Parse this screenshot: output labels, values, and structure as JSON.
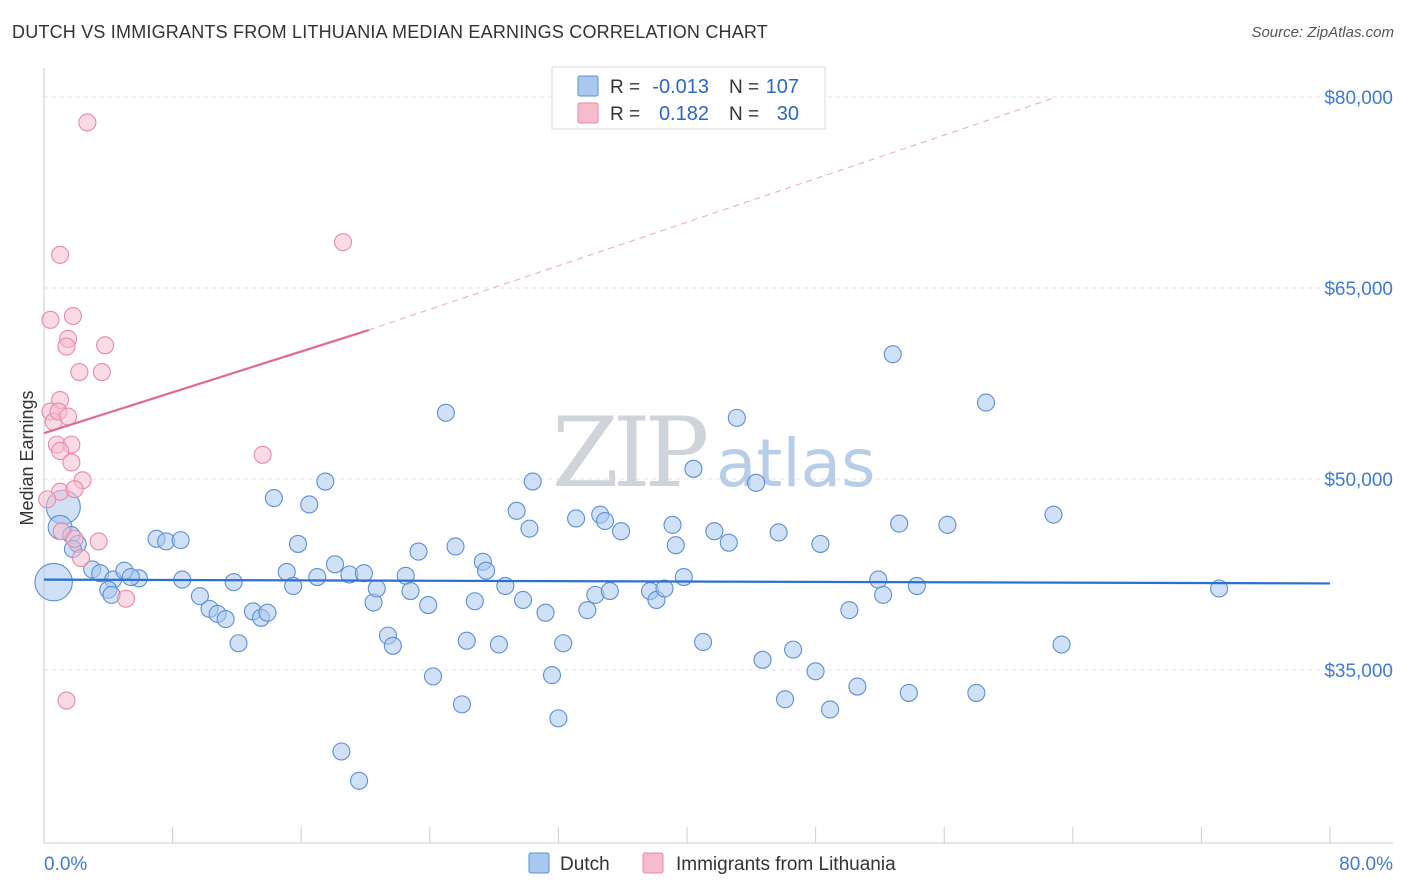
{
  "title": "DUTCH VS IMMIGRANTS FROM LITHUANIA MEDIAN EARNINGS CORRELATION CHART",
  "source": "Source: ZipAtlas.com",
  "watermark": {
    "zip": "ZIP",
    "atlas": "atlas"
  },
  "colors": {
    "dutch_fill": "#a9c8ef",
    "dutch_stroke": "#5b8fd6",
    "dutch_line": "#2b6fd0",
    "lith_fill": "#f6bccd",
    "lith_stroke": "#e98aa6",
    "lith_line": "#e06a93",
    "grid": "#dde2ea",
    "axis_text": "#3d7bd4"
  },
  "legend": {
    "rows": [
      {
        "r_label": "R =",
        "r_value": "-0.013",
        "n_label": "N =",
        "n_value": "107",
        "series": "dutch"
      },
      {
        "r_label": "R =",
        "r_value": "0.182",
        "n_label": "N =",
        "n_value": "30",
        "series": "lith"
      }
    ]
  },
  "bottom_legend": [
    "Dutch",
    "Immigrants from Lithuania"
  ],
  "chart_data": {
    "type": "scatter",
    "title": "DUTCH VS IMMIGRANTS FROM LITHUANIA MEDIAN EARNINGS CORRELATION CHART",
    "xlabel": "",
    "ylabel": "Median Earnings",
    "x_unit": "percent",
    "xlim": [
      0,
      80
    ],
    "ylim": [
      22000,
      83000
    ],
    "x_tick_labels": [
      "0.0%",
      "80.0%"
    ],
    "y_ticks": [
      35000,
      50000,
      65000,
      80000
    ],
    "y_tick_labels": [
      "$35,000",
      "$50,000",
      "$65,000",
      "$80,000"
    ],
    "grid": true,
    "legend_position": "top-center",
    "series": [
      {
        "name": "Dutch",
        "color": "#a9c8ef",
        "r": -0.013,
        "n": 107,
        "trend": {
          "x": [
            0,
            80
          ],
          "y": [
            42100,
            41800
          ],
          "style": "solid"
        },
        "points": [
          [
            0.6,
            41900,
            2.2
          ],
          [
            1.2,
            47800,
            2.0
          ],
          [
            1.0,
            46200,
            1.4
          ],
          [
            1.7,
            45600,
            1.0
          ],
          [
            2.1,
            44900,
            1.0
          ],
          [
            1.8,
            44500,
            1.0
          ],
          [
            3.0,
            42900,
            1.0
          ],
          [
            3.5,
            42600,
            1.0
          ],
          [
            4.3,
            42100,
            1.0
          ],
          [
            5.0,
            42800,
            1.0
          ],
          [
            5.9,
            42200,
            1.0
          ],
          [
            4.0,
            41300,
            1.0
          ],
          [
            4.2,
            40900,
            1.0
          ],
          [
            5.4,
            42300,
            1.0
          ],
          [
            7.0,
            45300,
            1.0
          ],
          [
            7.6,
            45100,
            1.0
          ],
          [
            8.5,
            45200,
            1.0
          ],
          [
            8.6,
            42100,
            1.0
          ],
          [
            9.7,
            40800,
            1.0
          ],
          [
            10.3,
            39800,
            1.0
          ],
          [
            10.8,
            39400,
            1.0
          ],
          [
            11.3,
            39000,
            1.0
          ],
          [
            11.8,
            41900,
            1.0
          ],
          [
            12.1,
            37100,
            1.0
          ],
          [
            13.0,
            39600,
            1.0
          ],
          [
            13.5,
            39100,
            1.0
          ],
          [
            13.9,
            39500,
            1.0
          ],
          [
            14.3,
            48500,
            1.0
          ],
          [
            15.1,
            42700,
            1.0
          ],
          [
            15.5,
            41600,
            1.0
          ],
          [
            15.8,
            44900,
            1.0
          ],
          [
            16.5,
            48000,
            1.0
          ],
          [
            17.0,
            42300,
            1.0
          ],
          [
            17.5,
            49800,
            1.0
          ],
          [
            18.1,
            43300,
            1.0
          ],
          [
            18.5,
            28600,
            1.0
          ],
          [
            19.0,
            42500,
            1.0
          ],
          [
            19.6,
            26300,
            1.0
          ],
          [
            19.9,
            42600,
            1.0
          ],
          [
            20.5,
            40300,
            1.0
          ],
          [
            20.7,
            41400,
            1.0
          ],
          [
            21.4,
            37700,
            1.0
          ],
          [
            21.7,
            36900,
            1.0
          ],
          [
            22.5,
            42400,
            1.0
          ],
          [
            22.8,
            41200,
            1.0
          ],
          [
            23.3,
            44300,
            1.0
          ],
          [
            23.9,
            40100,
            1.0
          ],
          [
            24.2,
            34500,
            1.0
          ],
          [
            25.0,
            55200,
            1.0
          ],
          [
            25.6,
            44700,
            1.0
          ],
          [
            26.0,
            32300,
            1.0
          ],
          [
            26.3,
            37300,
            1.0
          ],
          [
            26.8,
            40400,
            1.0
          ],
          [
            27.3,
            43500,
            1.0
          ],
          [
            27.5,
            42800,
            1.0
          ],
          [
            28.3,
            37000,
            1.0
          ],
          [
            28.7,
            41600,
            1.0
          ],
          [
            29.4,
            47500,
            1.0
          ],
          [
            29.8,
            40500,
            1.0
          ],
          [
            30.2,
            46100,
            1.0
          ],
          [
            30.4,
            49800,
            1.0
          ],
          [
            31.2,
            39500,
            1.0
          ],
          [
            31.6,
            34600,
            1.0
          ],
          [
            32.0,
            31200,
            1.0
          ],
          [
            32.3,
            37100,
            1.0
          ],
          [
            33.1,
            46900,
            1.0
          ],
          [
            33.8,
            39700,
            1.0
          ],
          [
            34.3,
            40900,
            1.0
          ],
          [
            34.6,
            47200,
            1.0
          ],
          [
            34.9,
            46700,
            1.0
          ],
          [
            35.2,
            41200,
            1.0
          ],
          [
            35.9,
            45900,
            1.0
          ],
          [
            37.7,
            41200,
            1.0
          ],
          [
            38.1,
            40500,
            1.0
          ],
          [
            38.6,
            41400,
            1.0
          ],
          [
            39.1,
            46400,
            1.0
          ],
          [
            39.3,
            44800,
            1.0
          ],
          [
            39.8,
            42300,
            1.0
          ],
          [
            40.4,
            50800,
            1.0
          ],
          [
            41.0,
            37200,
            1.0
          ],
          [
            41.7,
            45900,
            1.0
          ],
          [
            42.6,
            45000,
            1.0
          ],
          [
            43.1,
            54800,
            1.0
          ],
          [
            44.3,
            49700,
            1.0
          ],
          [
            44.7,
            35800,
            1.0
          ],
          [
            45.7,
            45800,
            1.0
          ],
          [
            46.1,
            32700,
            1.0
          ],
          [
            46.6,
            36600,
            1.0
          ],
          [
            48.0,
            34900,
            1.0
          ],
          [
            48.3,
            44900,
            1.0
          ],
          [
            48.9,
            31900,
            1.0
          ],
          [
            50.1,
            39700,
            1.0
          ],
          [
            50.6,
            33700,
            1.0
          ],
          [
            51.9,
            42100,
            1.0
          ],
          [
            52.2,
            40900,
            1.0
          ],
          [
            52.8,
            59800,
            1.0
          ],
          [
            53.2,
            46500,
            1.0
          ],
          [
            53.8,
            33200,
            1.0
          ],
          [
            54.3,
            41600,
            1.0
          ],
          [
            56.2,
            46400,
            1.0
          ],
          [
            58.0,
            33200,
            1.0
          ],
          [
            58.6,
            56000,
            1.0
          ],
          [
            62.8,
            47200,
            1.0
          ],
          [
            63.3,
            37000,
            1.0
          ],
          [
            73.1,
            41400,
            1.0
          ]
        ]
      },
      {
        "name": "Immigrants from Lithuania",
        "color": "#f6bccd",
        "r": 0.182,
        "n": 30,
        "trend": {
          "x": [
            0,
            20.2
          ],
          "y": [
            53600,
            61700
          ],
          "style": "solid",
          "dashed_to": [
            63.0,
            80000
          ]
        },
        "points": [
          [
            2.7,
            78000,
            1.0
          ],
          [
            1.0,
            67600,
            1.0
          ],
          [
            18.6,
            68600,
            1.0
          ],
          [
            0.4,
            62500,
            1.0
          ],
          [
            1.8,
            62800,
            1.0
          ],
          [
            1.5,
            61000,
            1.0
          ],
          [
            1.4,
            60400,
            1.0
          ],
          [
            3.8,
            60500,
            1.0
          ],
          [
            2.2,
            58400,
            1.0
          ],
          [
            3.6,
            58400,
            1.0
          ],
          [
            1.0,
            56200,
            1.0
          ],
          [
            0.4,
            55300,
            1.0
          ],
          [
            0.6,
            54500,
            1.0
          ],
          [
            0.9,
            55300,
            1.0
          ],
          [
            1.5,
            54900,
            1.0
          ],
          [
            0.8,
            52700,
            1.0
          ],
          [
            1.7,
            52700,
            1.0
          ],
          [
            1.0,
            52200,
            1.0
          ],
          [
            13.6,
            51900,
            1.0
          ],
          [
            1.7,
            51300,
            1.0
          ],
          [
            2.4,
            49900,
            1.0
          ],
          [
            1.0,
            49000,
            1.0
          ],
          [
            1.9,
            49200,
            1.0
          ],
          [
            0.2,
            48400,
            1.0
          ],
          [
            1.1,
            45900,
            1.0
          ],
          [
            1.9,
            45300,
            1.0
          ],
          [
            2.3,
            43800,
            1.0
          ],
          [
            3.4,
            45100,
            1.0
          ],
          [
            5.1,
            40600,
            1.0
          ],
          [
            1.4,
            32600,
            1.0
          ]
        ]
      }
    ]
  }
}
